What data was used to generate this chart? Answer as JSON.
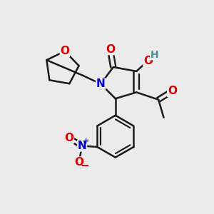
{
  "bg_color": "#ebebeb",
  "bond_color": "#1a1a1a",
  "bond_width": 1.8,
  "atom_colors": {
    "O": "#dd0000",
    "N": "#0000cc",
    "C": "#1a1a1a",
    "H": "#4a9090"
  },
  "font_size_atom": 11,
  "font_size_H": 10,
  "font_size_small": 9
}
